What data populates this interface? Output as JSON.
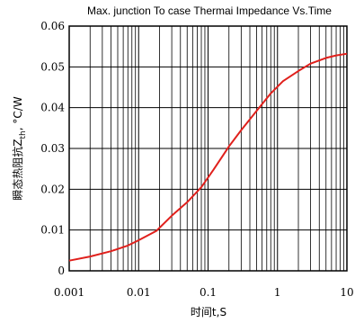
{
  "chart_data": {
    "type": "line",
    "title": "Max. junction To case Thermai Impedance Vs.Time",
    "xlabel": "时间t,S",
    "ylabel": {
      "prefix": "瞬态热阻抗Z",
      "subscript": "th",
      "suffix": ", °C/W"
    },
    "x_scale": "log",
    "xlim": [
      0.001,
      10
    ],
    "ylim": [
      0,
      0.06
    ],
    "x_ticks": [
      0.001,
      0.01,
      0.1,
      1,
      10
    ],
    "x_tick_labels": [
      "0.001",
      "0.01",
      "0.1",
      "1",
      "10"
    ],
    "y_ticks": [
      0,
      0.01,
      0.02,
      0.03,
      0.04,
      0.05,
      0.06
    ],
    "y_tick_labels": [
      "0",
      "0.01",
      "0.02",
      "0.03",
      "0.04",
      "0.05",
      "0.06"
    ],
    "grid": true,
    "series": [
      {
        "color": "#e0201c",
        "x": [
          0.001,
          0.002,
          0.004,
          0.007,
          0.01,
          0.018,
          0.03,
          0.05,
          0.08,
          0.12,
          0.2,
          0.3,
          0.5,
          0.8,
          1.2,
          2,
          3,
          5,
          7,
          10
        ],
        "y": [
          0.0025,
          0.0035,
          0.0048,
          0.0062,
          0.0075,
          0.0098,
          0.0135,
          0.0168,
          0.0205,
          0.0248,
          0.0305,
          0.0345,
          0.0392,
          0.0435,
          0.0465,
          0.049,
          0.0508,
          0.0522,
          0.0528,
          0.0532
        ]
      }
    ]
  }
}
